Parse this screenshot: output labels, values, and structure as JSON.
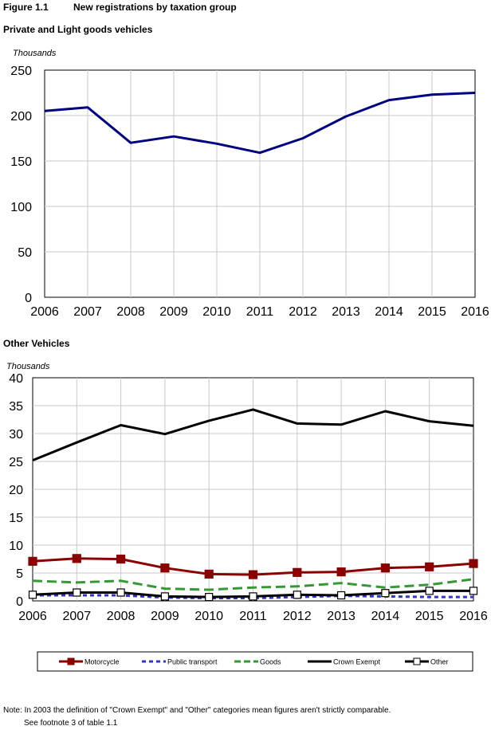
{
  "header": {
    "figure_label": "Figure 1.1",
    "figure_title": "New registrations by taxation group"
  },
  "chart_data": [
    {
      "type": "line",
      "title": "Private and Light goods vehicles",
      "ylabel": "Thousands",
      "xlabel": "",
      "ylim": [
        0,
        250
      ],
      "yticks": [
        0,
        50,
        100,
        150,
        200,
        250
      ],
      "grid": true,
      "legend": "none",
      "x": [
        "2006",
        "2007",
        "2008",
        "2009",
        "2010",
        "2011",
        "2012",
        "2013",
        "2014",
        "2015",
        "2016"
      ],
      "series": [
        {
          "name": "Private and Light goods",
          "color": "#000080",
          "style": "solid",
          "values": [
            205,
            209,
            170,
            177,
            169,
            159,
            175,
            199,
            217,
            223,
            225
          ]
        }
      ]
    },
    {
      "type": "line",
      "title": "Other Vehicles",
      "ylabel": "Thousands",
      "xlabel": "",
      "ylim": [
        0,
        40
      ],
      "yticks": [
        0,
        5,
        10,
        15,
        20,
        25,
        30,
        35,
        40
      ],
      "grid": true,
      "legend": "bottom",
      "x": [
        "2006",
        "2007",
        "2008",
        "2009",
        "2010",
        "2011",
        "2012",
        "2013",
        "2014",
        "2015",
        "2016"
      ],
      "series": [
        {
          "name": "Motorcycle",
          "color": "#8b0000",
          "style": "solid",
          "marker": "filled-square",
          "values": [
            7.1,
            7.6,
            7.5,
            5.9,
            4.8,
            4.7,
            5.1,
            5.2,
            5.9,
            6.1,
            6.7
          ]
        },
        {
          "name": "Public transport",
          "color": "#3333cc",
          "style": "dashed",
          "marker": "none",
          "values": [
            1.0,
            1.0,
            1.0,
            0.6,
            0.5,
            0.5,
            0.7,
            0.9,
            0.8,
            0.7,
            0.7
          ]
        },
        {
          "name": "Goods",
          "color": "#339933",
          "style": "dashed",
          "marker": "none",
          "values": [
            3.6,
            3.3,
            3.6,
            2.2,
            2.0,
            2.4,
            2.6,
            3.2,
            2.4,
            2.9,
            3.9
          ]
        },
        {
          "name": "Crown Exempt",
          "color": "#000000",
          "style": "solid",
          "marker": "none",
          "values": [
            25.2,
            28.4,
            31.5,
            29.9,
            32.3,
            34.3,
            31.8,
            31.6,
            34.0,
            32.2,
            31.4
          ]
        },
        {
          "name": "Other",
          "color": "#000000",
          "style": "solid",
          "marker": "open-square",
          "values": [
            1.1,
            1.5,
            1.5,
            0.8,
            0.7,
            0.8,
            1.1,
            1.0,
            1.4,
            1.8,
            1.8
          ]
        }
      ]
    }
  ],
  "footnote": {
    "line1": "Note:  In 2003 the definition of \"Crown Exempt\" and \"Other\" categories mean figures aren't strictly comparable.",
    "line2": "See footnote 3 of table 1.1"
  }
}
